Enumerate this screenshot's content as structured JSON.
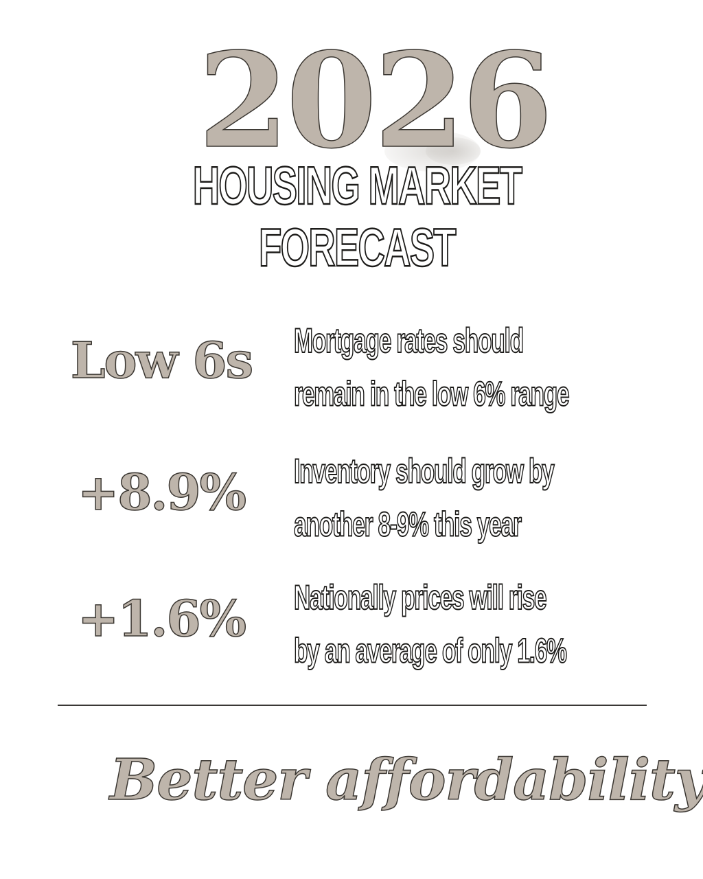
{
  "year": "2026",
  "headline": {
    "line1": "HOUSING MARKET",
    "line2": "FORECAST"
  },
  "stats": [
    {
      "value": "Low 6s",
      "text_line1": "Mortgage rates should",
      "text_line2": "remain in the low 6% range"
    },
    {
      "value": "+8.9%",
      "text_line1": "Inventory should grow by",
      "text_line2": "another 8-9% this year"
    },
    {
      "value": "+1.6%",
      "text_line1": "Nationally prices will rise",
      "text_line2": "by an average of only 1.6%"
    }
  ],
  "tagline": "Better affordability",
  "colors": {
    "accent_taupe": "#beb5ab",
    "outline_dark": "#1c1b19",
    "background": "#ffffff",
    "divider": "#3a3836"
  }
}
